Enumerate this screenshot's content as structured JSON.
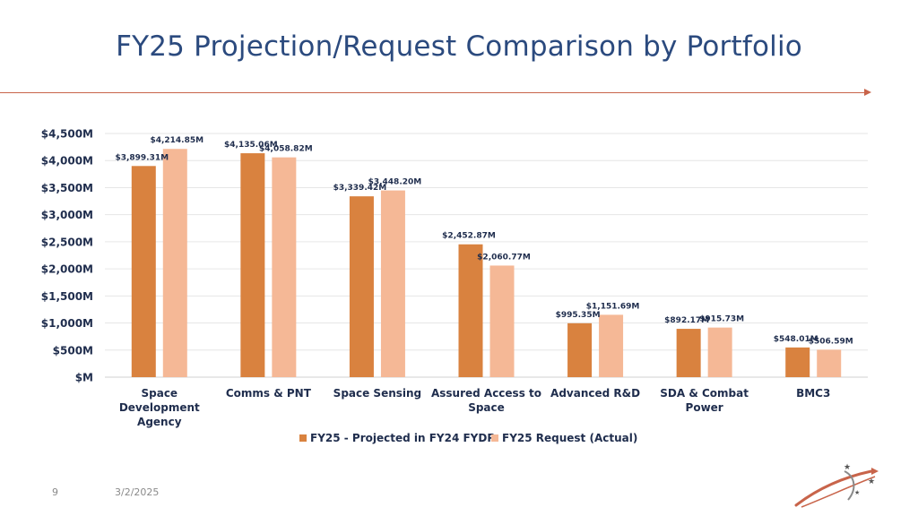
{
  "slide": {
    "title": "FY25 Projection/Request Comparison by Portfolio",
    "page_number": "9",
    "date": "3/2/2025"
  },
  "colors": {
    "title": "#2b4a7e",
    "accent_line": "#c8644a",
    "series_projected": "#d9823f",
    "series_request": "#f5b896",
    "label_text": "#1f2d4d",
    "gridline": "#e6e6e6"
  },
  "logo": {
    "icon": "orbit-swoosh-stars-icon"
  },
  "chart_data": {
    "type": "bar",
    "categories": [
      "Space Development Agency",
      "Comms & PNT",
      "Space Sensing",
      "Assured Access to Space",
      "Advanced R&D",
      "SDA & Combat Power",
      "BMC3"
    ],
    "category_lines": [
      [
        "Space",
        "Development",
        "Agency"
      ],
      [
        "Comms & PNT"
      ],
      [
        "Space Sensing"
      ],
      [
        "Assured Access to",
        "Space"
      ],
      [
        "Advanced R&D"
      ],
      [
        "SDA & Combat",
        "Power"
      ],
      [
        "BMC3"
      ]
    ],
    "series": [
      {
        "name": "FY25 - Projected in FY24 FYDP",
        "values": [
          3899.31,
          4135.06,
          3339.42,
          2452.87,
          995.35,
          892.17,
          548.01
        ],
        "labels": [
          "$3,899.31M",
          "$4,135.06M",
          "$3,339.42M",
          "$2,452.87M",
          "$995.35M",
          "$892.17M",
          "$548.01M"
        ]
      },
      {
        "name": "FY25 Request (Actual)",
        "values": [
          4214.85,
          4058.82,
          3448.2,
          2060.77,
          1151.69,
          915.73,
          506.59
        ],
        "labels": [
          "$4,214.85M",
          "$4,058.82M",
          "$3,448.20M",
          "$2,060.77M",
          "$1,151.69M",
          "$915.73M",
          "$506.59M"
        ]
      }
    ],
    "y_ticks": [
      "$M",
      "$500M",
      "$1,000M",
      "$1,500M",
      "$2,000M",
      "$2,500M",
      "$3,000M",
      "$3,500M",
      "$4,000M",
      "$4,500M"
    ],
    "ylim": [
      0,
      4500
    ],
    "y_step": 500,
    "grid": true,
    "legend_position": "bottom"
  }
}
